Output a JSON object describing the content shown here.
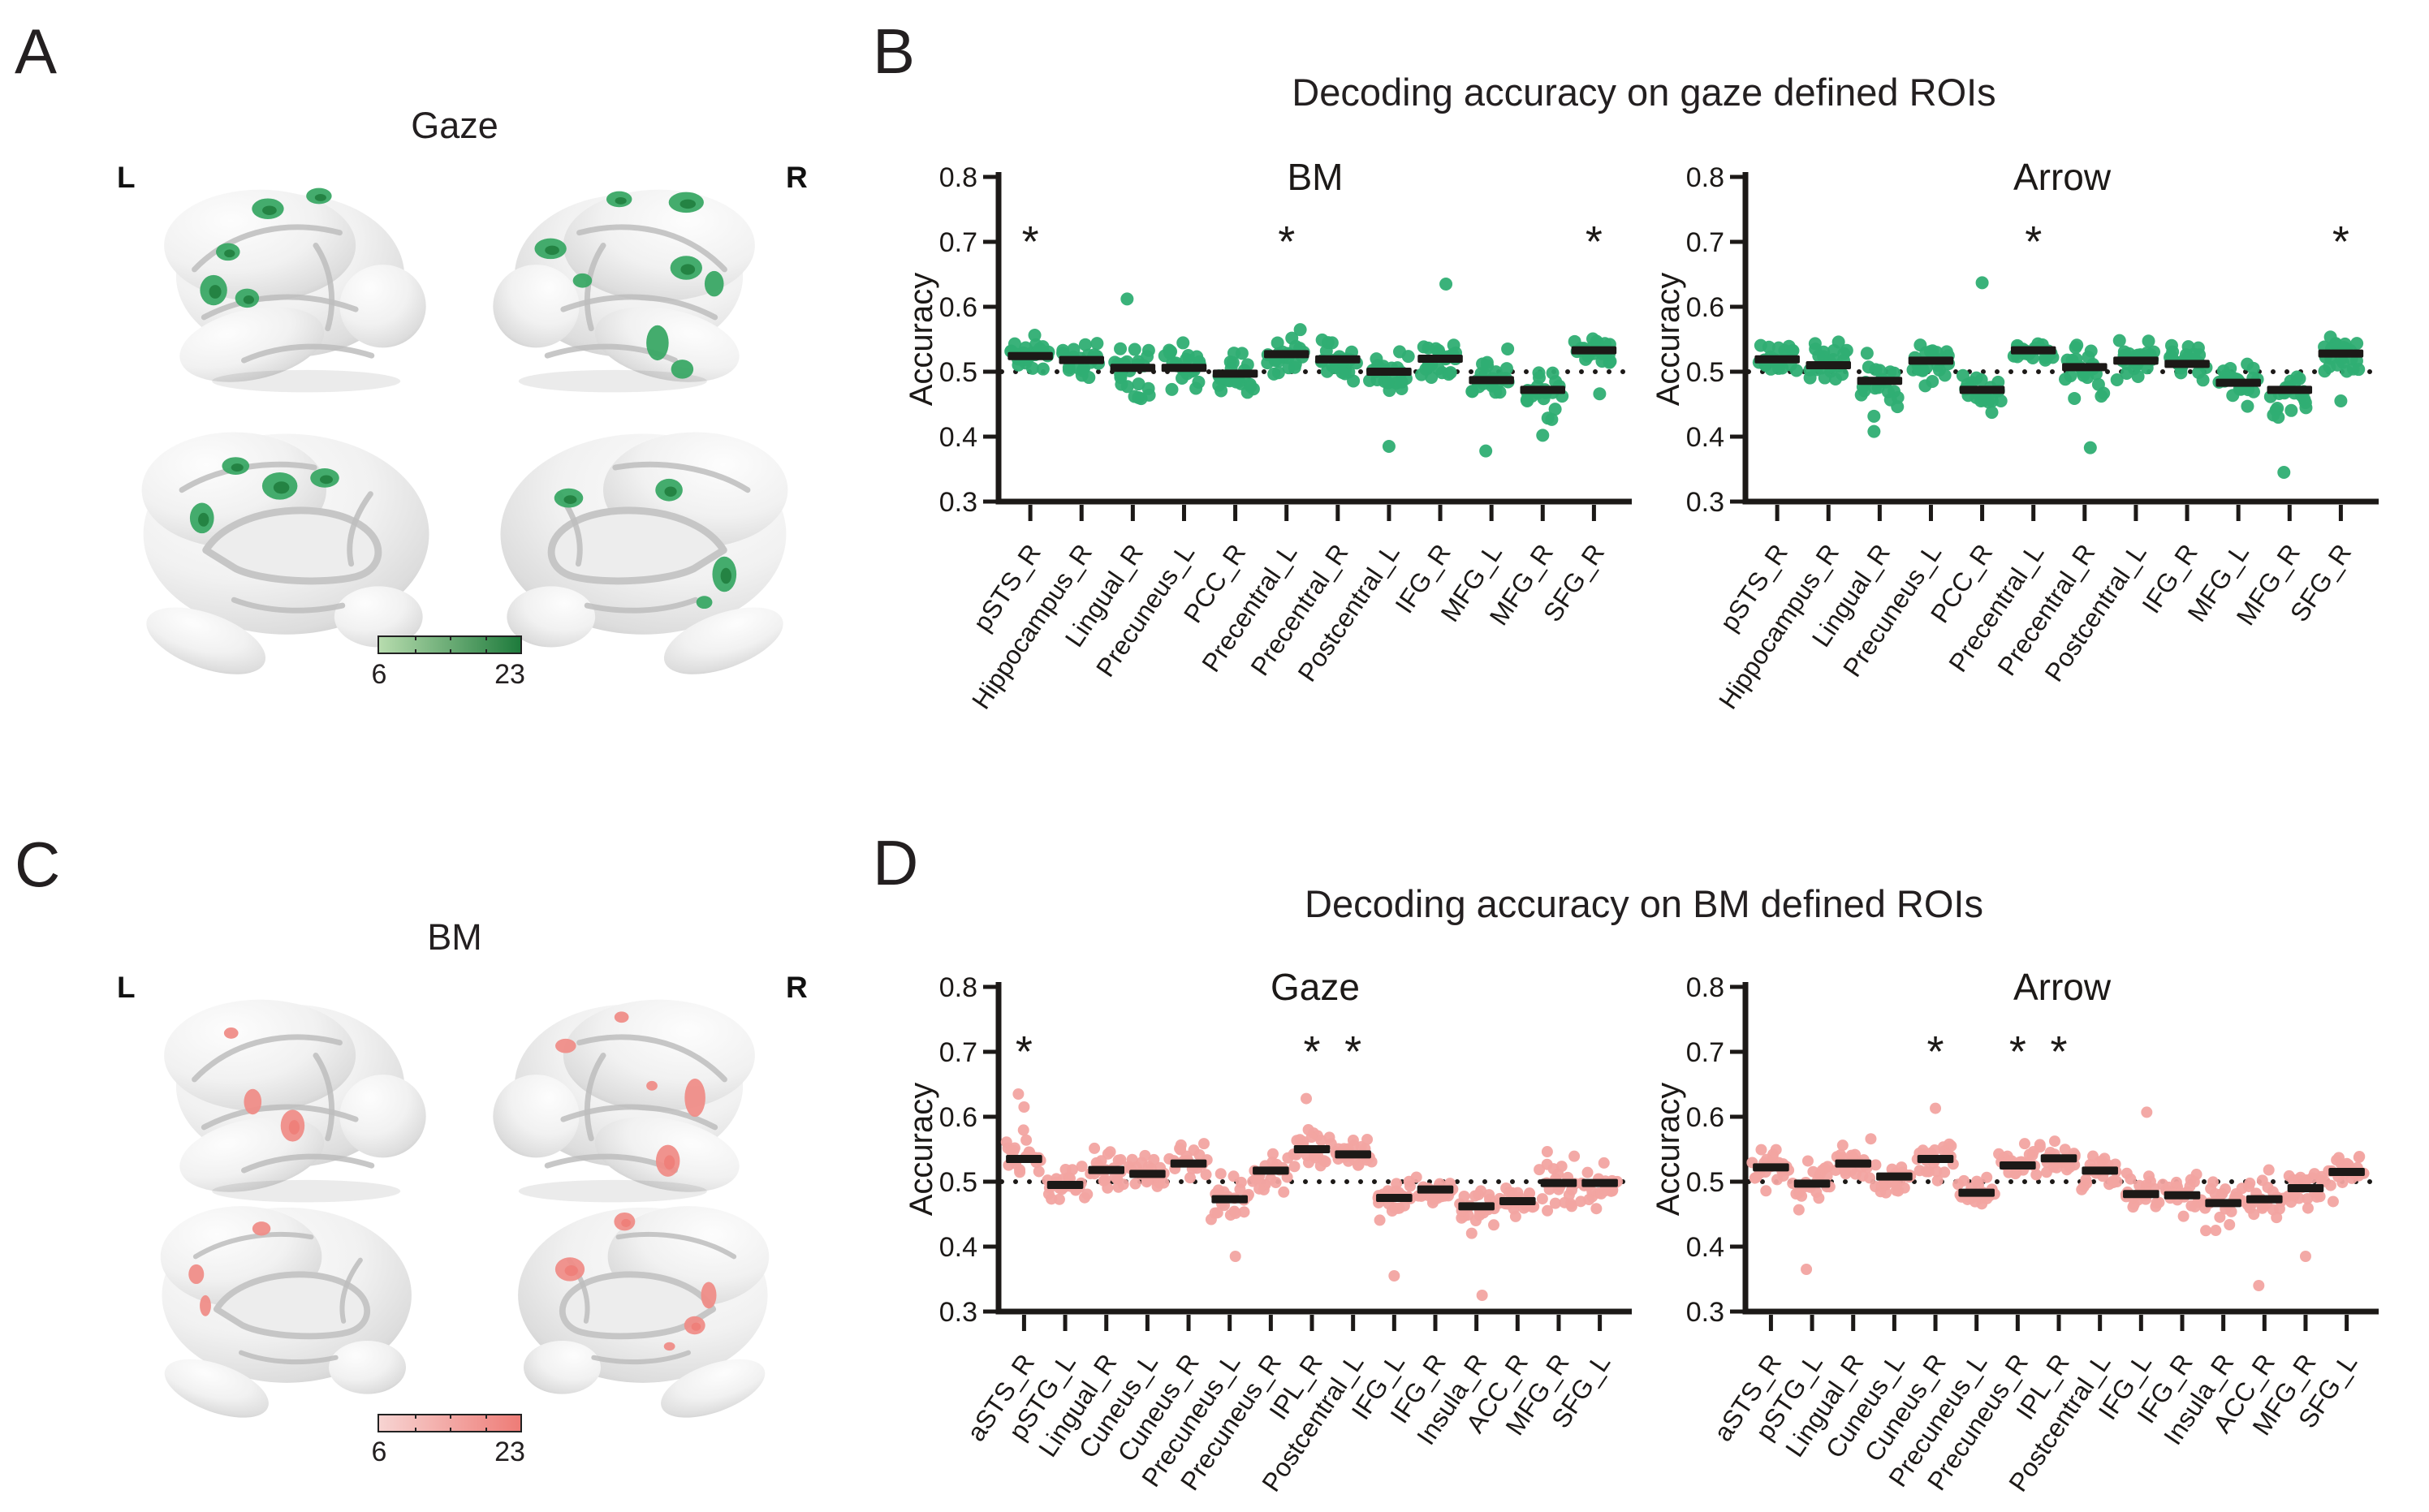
{
  "figure": {
    "background": "#ffffff",
    "text_color": "#231f20",
    "sig_marker": "*"
  },
  "panel_a": {
    "letter": "A",
    "title": "Gaze",
    "left": "L",
    "right": "R",
    "roi_color": "#3aa865",
    "colorbar": {
      "min": "6",
      "max": "23",
      "low": "#b7dcae",
      "high": "#1e7b3c"
    },
    "brains": {
      "lateral_left": [
        [
          152,
          46,
          20,
          13
        ],
        [
          102,
          100,
          15,
          11
        ],
        [
          84,
          148,
          17,
          19
        ],
        [
          126,
          158,
          15,
          12
        ],
        [
          216,
          30,
          16,
          10
        ]
      ],
      "lateral_right": [
        [
          252,
          38,
          22,
          13
        ],
        [
          168,
          34,
          16,
          10
        ],
        [
          82,
          96,
          20,
          13
        ],
        [
          122,
          136,
          12,
          9
        ],
        [
          252,
          120,
          20,
          15
        ],
        [
          287,
          140,
          12,
          16
        ],
        [
          216,
          214,
          14,
          22
        ],
        [
          247,
          247,
          14,
          12
        ]
      ],
      "medial_left": [
        [
          152,
          70,
          17,
          11
        ],
        [
          207,
          95,
          22,
          17
        ],
        [
          263,
          85,
          18,
          12
        ],
        [
          110,
          135,
          15,
          19
        ]
      ],
      "medial_right": [
        [
          132,
          110,
          18,
          12
        ],
        [
          257,
          100,
          17,
          14
        ],
        [
          326,
          205,
          15,
          22
        ],
        [
          301,
          240,
          10,
          8
        ]
      ]
    }
  },
  "panel_c": {
    "letter": "C",
    "title": "BM",
    "left": "L",
    "right": "R",
    "roi_color": "#ef8d88",
    "colorbar": {
      "min": "6",
      "max": "23",
      "low": "#f7d4d2",
      "high": "#ee7c77"
    },
    "brains": {
      "lateral_left": [
        [
          106,
          64,
          9,
          7
        ],
        [
          133,
          150,
          11,
          16
        ],
        [
          183,
          180,
          15,
          20
        ]
      ],
      "lateral_right": [
        [
          101,
          80,
          13,
          9
        ],
        [
          171,
          44,
          9,
          7
        ],
        [
          263,
          145,
          13,
          24
        ],
        [
          229,
          224,
          15,
          20
        ],
        [
          209,
          130,
          7,
          6
        ]
      ],
      "medial_left": [
        [
          179,
          60,
          13,
          10
        ],
        [
          86,
          125,
          11,
          14
        ],
        [
          99,
          170,
          8,
          15
        ]
      ],
      "medial_right": [
        [
          199,
          50,
          15,
          13
        ],
        [
          121,
          118,
          21,
          17
        ],
        [
          319,
          155,
          11,
          19
        ],
        [
          299,
          198,
          15,
          13
        ],
        [
          263,
          228,
          8,
          6
        ]
      ]
    }
  },
  "panel_b": {
    "letter": "B",
    "title": "Decoding accuracy on gaze defined ROIs"
  },
  "panel_d": {
    "letter": "D",
    "title": "Decoding accuracy on BM defined ROIs"
  },
  "chart_data": [
    {
      "id": "b-bm",
      "panel": "B",
      "type": "scatter",
      "title": "BM",
      "ylabel": "Accuracy",
      "ylim": [
        0.3,
        0.8
      ],
      "yticks": [
        "0.3",
        "0.4",
        "0.5",
        "0.6",
        "0.7",
        "0.8"
      ],
      "chance_level": 0.5,
      "grid": false,
      "point_color": "#2fae73",
      "n_per_roi": 22,
      "categories": [
        "pSTS_R",
        "Hippocampus_R",
        "Lingual_R",
        "Precuneus_L",
        "PCC_R",
        "Precentral_L",
        "Precentral_R",
        "Postcentral_L",
        "IFG_R",
        "MFG_L",
        "MFG_R",
        "SFG_R"
      ],
      "means": [
        0.524,
        0.518,
        0.506,
        0.506,
        0.497,
        0.527,
        0.519,
        0.5,
        0.52,
        0.487,
        0.472,
        0.533
      ],
      "sds": [
        0.03,
        0.03,
        0.042,
        0.035,
        0.033,
        0.03,
        0.034,
        0.036,
        0.038,
        0.035,
        0.035,
        0.022
      ],
      "significant": [
        "pSTS_R",
        "Precentral_L",
        "SFG_R"
      ],
      "extra_points": [
        [
          2,
          0.612
        ],
        [
          7,
          0.385
        ],
        [
          8,
          0.635
        ],
        [
          9,
          0.378
        ],
        [
          10,
          0.402
        ],
        [
          11,
          0.466
        ]
      ]
    },
    {
      "id": "b-arrow",
      "panel": "B",
      "type": "scatter",
      "title": "Arrow",
      "ylabel": "Accuracy",
      "ylim": [
        0.3,
        0.8
      ],
      "yticks": [
        "0.3",
        "0.4",
        "0.5",
        "0.6",
        "0.7",
        "0.8"
      ],
      "chance_level": 0.5,
      "grid": false,
      "point_color": "#2fae73",
      "n_per_roi": 22,
      "categories": [
        "pSTS_R",
        "Hippocampus_R",
        "Lingual_R",
        "Precuneus_L",
        "PCC_R",
        "Precentral_L",
        "Precentral_R",
        "Postcentral_L",
        "IFG_R",
        "MFG_L",
        "MFG_R",
        "SFG_R"
      ],
      "means": [
        0.519,
        0.51,
        0.486,
        0.517,
        0.472,
        0.533,
        0.507,
        0.517,
        0.512,
        0.483,
        0.472,
        0.528
      ],
      "sds": [
        0.032,
        0.038,
        0.038,
        0.032,
        0.035,
        0.018,
        0.04,
        0.033,
        0.03,
        0.036,
        0.037,
        0.026
      ],
      "significant": [
        "Precentral_L",
        "SFG_R"
      ],
      "extra_points": [
        [
          2,
          0.408
        ],
        [
          4,
          0.637
        ],
        [
          6,
          0.383
        ],
        [
          10,
          0.345
        ],
        [
          11,
          0.455
        ]
      ]
    },
    {
      "id": "d-gaze",
      "panel": "D",
      "type": "scatter",
      "title": "Gaze",
      "ylabel": "Accuracy",
      "ylim": [
        0.3,
        0.8
      ],
      "yticks": [
        "0.3",
        "0.4",
        "0.5",
        "0.6",
        "0.7",
        "0.8"
      ],
      "chance_level": 0.5,
      "grid": false,
      "point_color": "#f2a4a1",
      "n_per_roi": 22,
      "categories": [
        "aSTS_R",
        "pSTG_L",
        "Lingual_R",
        "Cuneus_L",
        "Cuneus_R",
        "Precuneus_L",
        "Precuneus_R",
        "IPL_R",
        "Postcentral_L",
        "IFG_L",
        "IFG_R",
        "Insula_R",
        "ACC_R",
        "MFG_R",
        "SFG_L"
      ],
      "means": [
        0.535,
        0.495,
        0.518,
        0.512,
        0.528,
        0.473,
        0.517,
        0.55,
        0.542,
        0.475,
        0.488,
        0.462,
        0.47,
        0.498,
        0.498
      ],
      "sds": [
        0.032,
        0.026,
        0.036,
        0.028,
        0.03,
        0.038,
        0.034,
        0.03,
        0.022,
        0.036,
        0.028,
        0.035,
        0.03,
        0.04,
        0.03
      ],
      "significant": [
        "aSTS_R",
        "IPL_R",
        "Postcentral_L"
      ],
      "extra_points": [
        [
          0,
          0.635
        ],
        [
          0,
          0.615
        ],
        [
          5,
          0.385
        ],
        [
          7,
          0.628
        ],
        [
          9,
          0.355
        ],
        [
          11,
          0.325
        ]
      ]
    },
    {
      "id": "d-arrow",
      "panel": "D",
      "type": "scatter",
      "title": "Arrow",
      "ylabel": "Accuracy",
      "ylim": [
        0.3,
        0.8
      ],
      "yticks": [
        "0.3",
        "0.4",
        "0.5",
        "0.6",
        "0.7",
        "0.8"
      ],
      "chance_level": 0.5,
      "grid": false,
      "point_color": "#f2a4a1",
      "n_per_roi": 22,
      "categories": [
        "aSTS_R",
        "pSTG_L",
        "Lingual_R",
        "Cuneus_L",
        "Cuneus_R",
        "Precuneus_L",
        "Precuneus_R",
        "IPL_R",
        "Postcentral_L",
        "IFG_L",
        "IFG_R",
        "Insula_R",
        "ACC_R",
        "MFG_R",
        "SFG_L"
      ],
      "means": [
        0.522,
        0.497,
        0.528,
        0.508,
        0.535,
        0.483,
        0.525,
        0.536,
        0.517,
        0.481,
        0.479,
        0.467,
        0.473,
        0.49,
        0.515
      ],
      "sds": [
        0.028,
        0.04,
        0.026,
        0.026,
        0.032,
        0.035,
        0.024,
        0.022,
        0.034,
        0.03,
        0.034,
        0.04,
        0.038,
        0.032,
        0.03
      ],
      "significant": [
        "Cuneus_R",
        "Precuneus_R",
        "IPL_R"
      ],
      "extra_points": [
        [
          1,
          0.365
        ],
        [
          4,
          0.613
        ],
        [
          9,
          0.607
        ],
        [
          12,
          0.34
        ],
        [
          13,
          0.385
        ]
      ]
    }
  ]
}
